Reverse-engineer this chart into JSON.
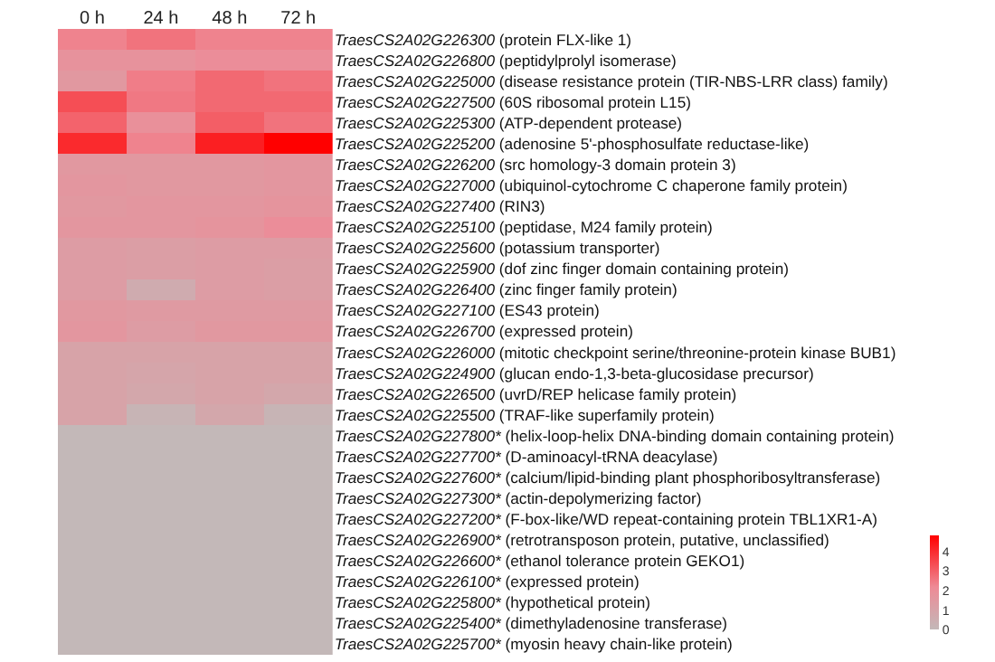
{
  "chart_data": {
    "type": "heatmap",
    "categories": [
      "0 h",
      "24 h",
      "48 h",
      "72 h"
    ],
    "y_categories": [
      "TraesCS2A02G226300 (protein FLX-like 1)",
      "TraesCS2A02G226800 (peptidylprolyl isomerase)",
      "TraesCS2A02G225000 (disease resistance protein (TIR-NBS-LRR class) family)",
      "TraesCS2A02G227500 (60S ribosomal protein L15)",
      "TraesCS2A02G225300 (ATP-dependent protease)",
      "TraesCS2A02G225200 (adenosine 5'-phosphosulfate reductase-like)",
      "TraesCS2A02G226200 (src homology-3 domain protein 3)",
      "TraesCS2A02G227000 (ubiquinol-cytochrome C chaperone family protein)",
      "TraesCS2A02G227400 (RIN3)",
      "TraesCS2A02G225100 (peptidase, M24 family protein)",
      "TraesCS2A02G225600 (potassium transporter)",
      "TraesCS2A02G225900 (dof zinc finger domain containing protein)",
      "TraesCS2A02G226400 (zinc finger family protein)",
      "TraesCS2A02G227100 (ES43 protein)",
      "TraesCS2A02G226700 (expressed protein)",
      "TraesCS2A02G226000 (mitotic checkpoint serine/threonine-protein kinase BUB1)",
      "TraesCS2A02G224900 (glucan endo-1,3-beta-glucosidase precursor)",
      "TraesCS2A02G226500 (uvrD/REP helicase family protein)",
      "TraesCS2A02G225500 (TRAF-like superfamily protein)",
      "TraesCS2A02G227800* (helix-loop-helix DNA-binding domain containing protein)",
      "TraesCS2A02G227700* (D-aminoacyl-tRNA deacylase)",
      "TraesCS2A02G227600* (calcium/lipid-binding plant phosphoribosyltransferase)",
      "TraesCS2A02G227300* (actin-depolymerizing factor)",
      "TraesCS2A02G227200* (F-box-like/WD repeat-containing protein TBL1XR1-A)",
      "TraesCS2A02G226900* (retrotransposon protein, putative, unclassified)",
      "TraesCS2A02G226600* (ethanol tolerance protein GEKO1)",
      "TraesCS2A02G226100* (expressed protein)",
      "TraesCS2A02G225800* (hypothetical protein)",
      "TraesCS2A02G225400* (dimethyladenosine transferase)",
      "TraesCS2A02G225700* (myosin heavy chain-like protein)"
    ],
    "cells": [
      [
        2.3,
        2.6,
        2.3,
        2.3
      ],
      [
        1.8,
        1.8,
        2.0,
        2.0
      ],
      [
        1.5,
        2.4,
        2.8,
        2.6
      ],
      [
        3.3,
        2.5,
        2.8,
        2.8
      ],
      [
        2.9,
        1.9,
        3.0,
        2.6
      ],
      [
        4.0,
        2.3,
        4.2,
        4.8
      ],
      [
        1.5,
        1.5,
        1.5,
        1.6
      ],
      [
        1.6,
        1.5,
        1.5,
        1.6
      ],
      [
        1.5,
        1.6,
        1.6,
        1.7
      ],
      [
        1.6,
        1.6,
        1.7,
        2.0
      ],
      [
        1.3,
        1.2,
        1.3,
        1.3
      ],
      [
        1.3,
        1.2,
        1.3,
        1.2
      ],
      [
        1.3,
        0.6,
        1.3,
        1.2
      ],
      [
        1.5,
        1.4,
        1.4,
        1.4
      ],
      [
        1.6,
        1.3,
        1.5,
        1.5
      ],
      [
        1.0,
        1.0,
        1.0,
        1.0
      ],
      [
        1.0,
        0.9,
        1.0,
        1.0
      ],
      [
        1.0,
        0.8,
        1.0,
        0.8
      ],
      [
        1.0,
        0.2,
        0.8,
        0.2
      ],
      [
        0,
        0,
        0,
        0
      ],
      [
        0,
        0,
        0,
        0
      ],
      [
        0,
        0,
        0,
        0
      ],
      [
        0,
        0,
        0,
        0
      ],
      [
        0,
        0,
        0,
        0
      ],
      [
        0,
        0,
        0,
        0
      ],
      [
        0,
        0,
        0,
        0
      ],
      [
        0,
        0,
        0,
        0
      ],
      [
        0,
        0,
        0,
        0
      ],
      [
        0,
        0,
        0,
        0
      ],
      [
        0,
        0,
        0,
        0
      ]
    ],
    "clim": [
      0,
      4.8
    ],
    "cticks": [
      0,
      1,
      2,
      3,
      4
    ]
  }
}
